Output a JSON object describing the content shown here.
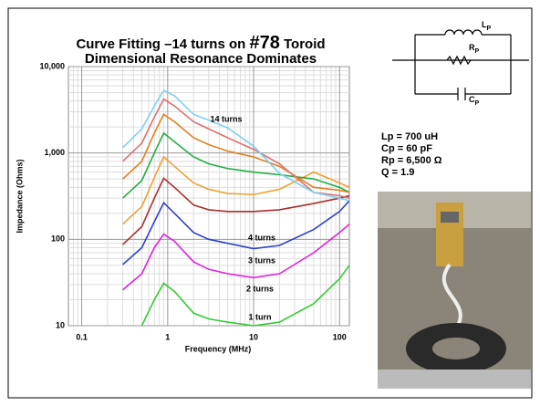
{
  "slide": {
    "title_parts": [
      "Curve Fitting –14 turns on ",
      "#78",
      " Toroid"
    ],
    "subtitle": "Dimensional Resonance Dominates",
    "schematic": {
      "inductor": {
        "symbol": "L",
        "subscript": "P"
      },
      "resistor": {
        "symbol": "R",
        "subscript": "P"
      },
      "capacitor": {
        "symbol": "C",
        "subscript": "P"
      }
    },
    "parameters": [
      "Lp = 700 uH",
      "Cp = 60 pF",
      "Rp = 6,500 Ω",
      "Q = 1.9"
    ]
  },
  "chart_data": {
    "type": "line",
    "x_label": "Frequency (MHz)",
    "y_label": "Impedance (Ohms)",
    "xscale": "log",
    "yscale": "log",
    "grid": true,
    "minor_grid": true,
    "xlim": [
      0.07,
      130
    ],
    "ylim": [
      10,
      10000
    ],
    "xticks": [
      0.1,
      1,
      10,
      100
    ],
    "yticks": [
      10,
      100,
      {
        "value": 1000,
        "label": "1,000"
      },
      {
        "value": 10000,
        "label": "10,000"
      }
    ],
    "x": [
      0.3,
      0.5,
      0.7,
      0.9,
      1.2,
      2,
      3,
      5,
      10,
      20,
      50,
      100,
      130
    ],
    "series": [
      {
        "name": "1 turn",
        "color": "#33cc33",
        "values": [
          null,
          10,
          20,
          31,
          25,
          14,
          12,
          11,
          10,
          11,
          18,
          35,
          50
        ]
      },
      {
        "name": "2 turns",
        "color": "#e020e0",
        "values": [
          26,
          40,
          80,
          115,
          95,
          55,
          45,
          40,
          36,
          40,
          70,
          120,
          150
        ]
      },
      {
        "name": "3 turns",
        "color": "#3040d0",
        "values": [
          51,
          80,
          160,
          265,
          200,
          120,
          100,
          90,
          78,
          85,
          130,
          210,
          280
        ]
      },
      {
        "name": "4 turns",
        "color": "#a83030",
        "values": [
          87,
          140,
          300,
          510,
          400,
          250,
          220,
          210,
          210,
          220,
          260,
          300,
          320
        ]
      },
      {
        "color": "#f0a030",
        "values": [
          150,
          240,
          520,
          900,
          700,
          450,
          380,
          340,
          330,
          380,
          600,
          450,
          400
        ]
      },
      {
        "color": "#20b040",
        "values": [
          300,
          480,
          1000,
          1700,
          1350,
          900,
          750,
          660,
          600,
          560,
          500,
          400,
          350
        ]
      },
      {
        "color": "#e08020",
        "values": [
          500,
          800,
          1700,
          2800,
          2300,
          1500,
          1250,
          1050,
          900,
          700,
          400,
          370,
          350
        ]
      },
      {
        "color": "#e07070",
        "values": [
          800,
          1300,
          2600,
          4200,
          3500,
          2300,
          1900,
          1500,
          1100,
          750,
          350,
          320,
          300
        ]
      },
      {
        "name": "14 turns",
        "color": "#80d0f0",
        "values": [
          1150,
          1900,
          3500,
          5300,
          4600,
          2800,
          2400,
          1950,
          1200,
          580,
          350,
          300,
          280
        ]
      }
    ]
  }
}
